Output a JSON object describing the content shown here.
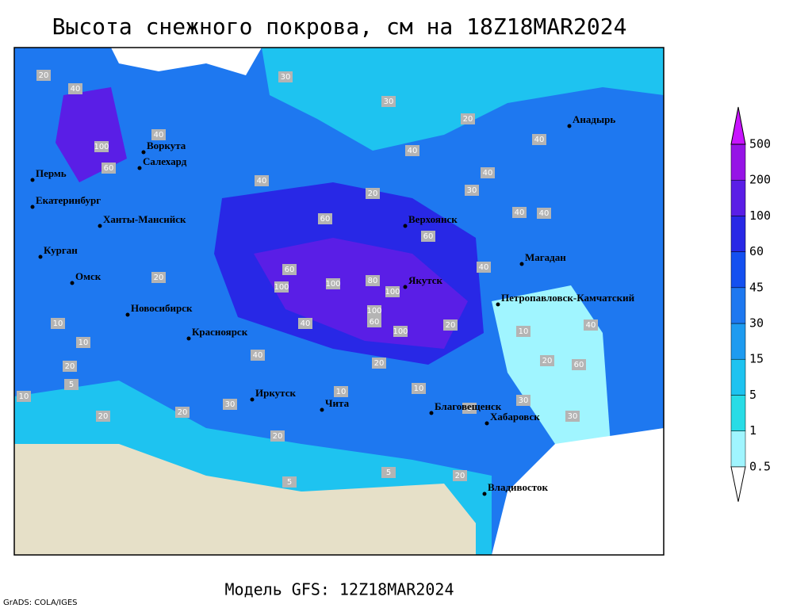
{
  "title": "Высота снежного покрова, см на 18Z18MAR2024",
  "cities": [
    "Воркута",
    "Салехард",
    "Пермь",
    "Екатеринбург",
    "Ханты-Мансийск",
    "Курган",
    "Омск",
    "Новосибирск",
    "Красноярск",
    "Иркутск",
    "Чита",
    "Верхоянск",
    "Якутск",
    "Магадан",
    "Петропавловск-Камчатский",
    "Анадырь",
    "Благовещенск",
    "Хабаровск",
    "Владивосток"
  ],
  "contour_labels": [
    20,
    40,
    40,
    30,
    30,
    20,
    100,
    60,
    40,
    20,
    40,
    60,
    60,
    100,
    100,
    80,
    100,
    100,
    60,
    100,
    40,
    40,
    60,
    40,
    40,
    30,
    20,
    20,
    20,
    10,
    10,
    5,
    10,
    20,
    20,
    30,
    20,
    10,
    5,
    20,
    10,
    5,
    5,
    20,
    30,
    40,
    40,
    40,
    40,
    60,
    30,
    20,
    10,
    20
  ],
  "colorbar": {
    "levels": [
      0.5,
      1,
      5,
      15,
      30,
      45,
      60,
      100,
      200,
      500
    ],
    "colors": [
      "#ffffff",
      "#a0f5ff",
      "#28dce6",
      "#1ec3f0",
      "#1e9bf0",
      "#1e78f0",
      "#1450f0",
      "#2828e6",
      "#5a1ee6",
      "#9614e6",
      "#c814ff"
    ]
  },
  "footer": "Модель GFS: 12Z18MAR2024",
  "credit": "GrADS: COLA/IGES"
}
